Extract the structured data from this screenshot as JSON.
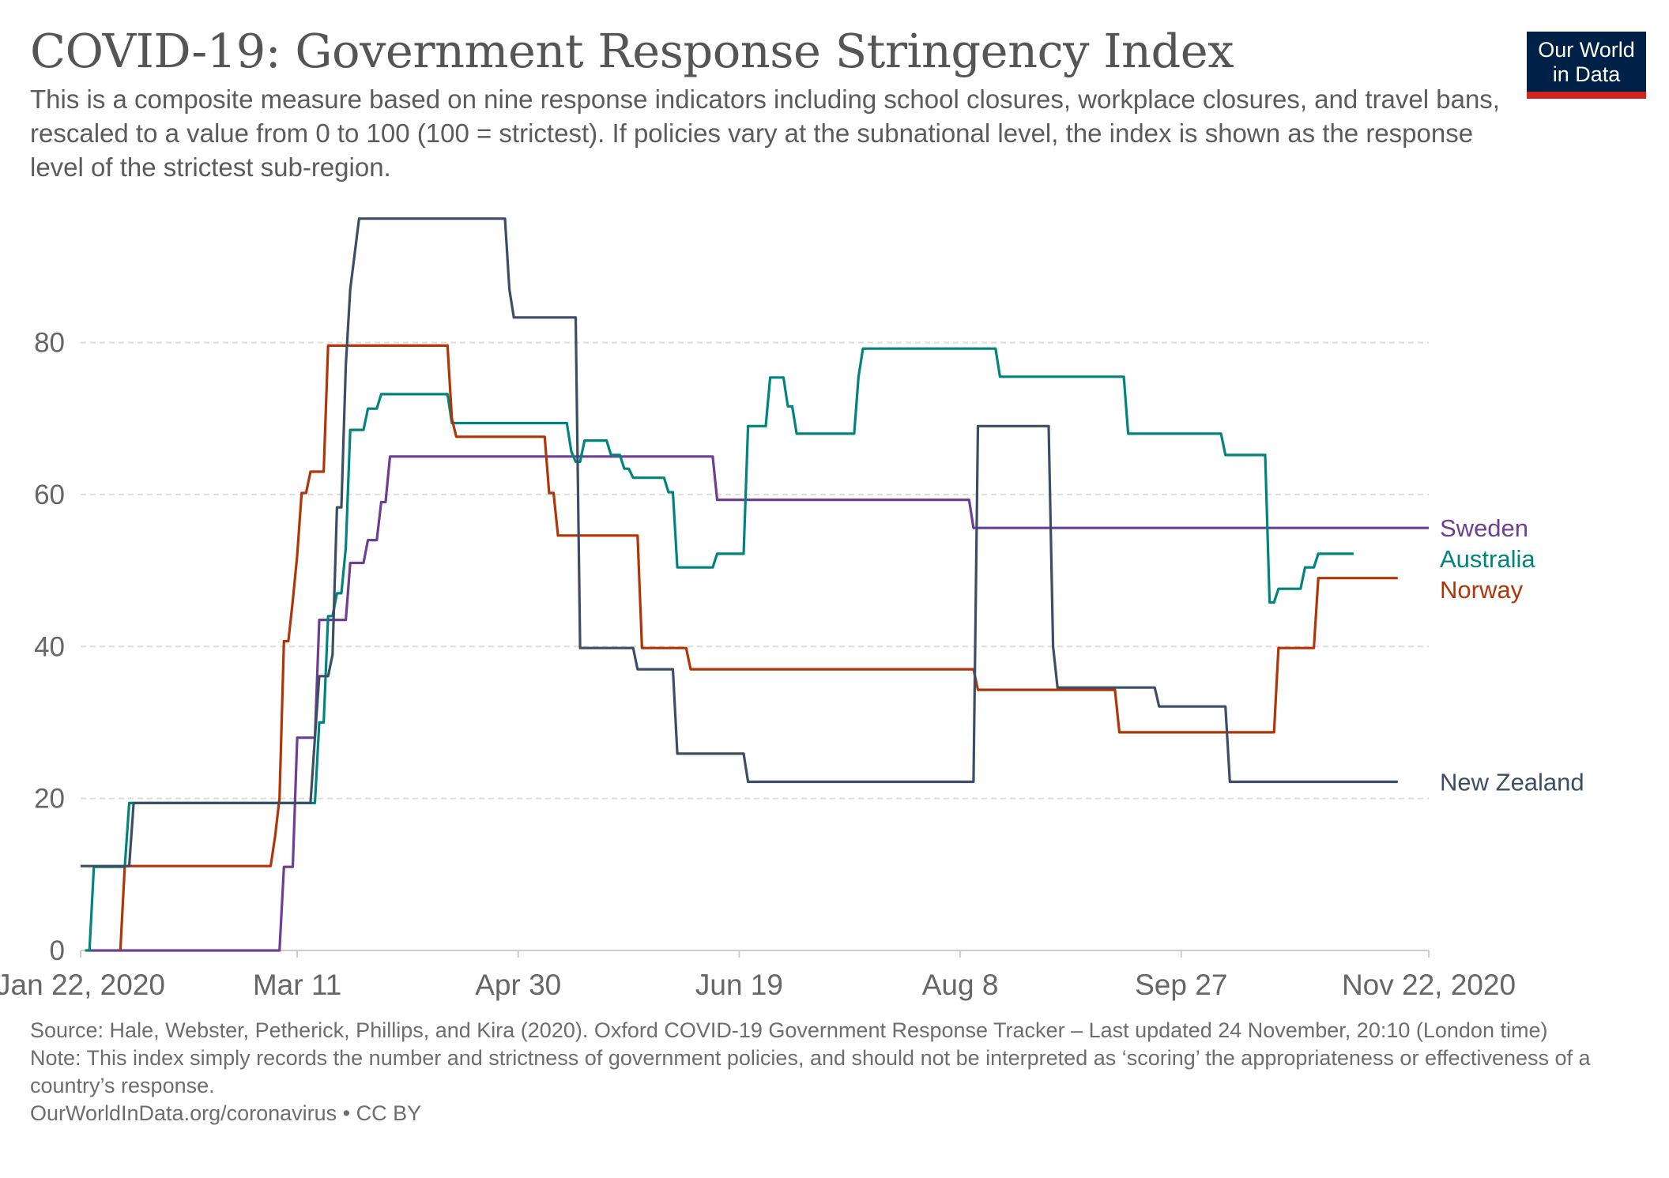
{
  "header": {
    "title": "COVID-19: Government Response Stringency Index",
    "subtitle": "This is a composite measure based on nine response indicators including school closures, workplace closures, and travel bans, rescaled to a value from 0 to 100 (100 = strictest). If policies vary at the subnational level, the index is shown as the response level of the strictest sub-region.",
    "logo_line1": "Our World",
    "logo_line2": "in Data"
  },
  "colors": {
    "logo_bg": "#002147",
    "logo_bar": "#ce261e",
    "grid": "#dddddd",
    "axis": "#cccccc"
  },
  "footer": {
    "source": "Source: Hale, Webster, Petherick, Phillips, and Kira (2020). Oxford COVID-19 Government Response Tracker – Last updated 24 November, 20:10 (London time)",
    "note": "Note: This index simply records the number and strictness of government policies, and should not be interpreted as ‘scoring’ the appropriateness or effectiveness of a country’s response.",
    "url": "OurWorldInData.org/coronavirus • CC BY"
  },
  "chart_data": {
    "type": "line",
    "line_style": "step",
    "x_type": "date",
    "x_range": [
      "2020-01-22",
      "2020-11-22"
    ],
    "ylim": [
      0,
      97
    ],
    "grid": true,
    "legend": "right (labels at line ends)",
    "x_ticks": [
      {
        "date": "2020-01-22",
        "label": "Jan 22, 2020"
      },
      {
        "date": "2020-03-11",
        "label": "Mar 11"
      },
      {
        "date": "2020-04-30",
        "label": "Apr 30"
      },
      {
        "date": "2020-06-19",
        "label": "Jun 19"
      },
      {
        "date": "2020-08-08",
        "label": "Aug 8"
      },
      {
        "date": "2020-09-27",
        "label": "Sep 27"
      },
      {
        "date": "2020-11-22",
        "label": "Nov 22, 2020"
      }
    ],
    "y_ticks": [
      0,
      20,
      40,
      60,
      80
    ],
    "series": [
      {
        "name": "Sweden",
        "color": "#6d3e91",
        "points": [
          [
            "2020-01-24",
            0
          ],
          [
            "2020-03-07",
            0
          ],
          [
            "2020-03-08",
            11
          ],
          [
            "2020-03-10",
            11
          ],
          [
            "2020-03-11",
            28
          ],
          [
            "2020-03-15",
            28
          ],
          [
            "2020-03-16",
            43.5
          ],
          [
            "2020-03-22",
            43.5
          ],
          [
            "2020-03-23",
            51
          ],
          [
            "2020-03-26",
            51
          ],
          [
            "2020-03-27",
            54
          ],
          [
            "2020-03-29",
            54
          ],
          [
            "2020-03-30",
            59
          ],
          [
            "2020-03-31",
            59
          ],
          [
            "2020-04-01",
            65
          ],
          [
            "2020-06-13",
            65
          ],
          [
            "2020-06-14",
            59.3
          ],
          [
            "2020-08-10",
            59.3
          ],
          [
            "2020-08-11",
            55.6
          ],
          [
            "2020-11-22",
            55.6
          ]
        ]
      },
      {
        "name": "Australia",
        "color": "#00847e",
        "points": [
          [
            "2020-01-23",
            0
          ],
          [
            "2020-01-24",
            0
          ],
          [
            "2020-01-25",
            11
          ],
          [
            "2020-02-01",
            11
          ],
          [
            "2020-02-02",
            19.4
          ],
          [
            "2020-03-15",
            19.4
          ],
          [
            "2020-03-16",
            30
          ],
          [
            "2020-03-17",
            30
          ],
          [
            "2020-03-18",
            44
          ],
          [
            "2020-03-19",
            44
          ],
          [
            "2020-03-20",
            47
          ],
          [
            "2020-03-21",
            47
          ],
          [
            "2020-03-22",
            53
          ],
          [
            "2020-03-23",
            68.5
          ],
          [
            "2020-03-26",
            68.5
          ],
          [
            "2020-03-27",
            71.3
          ],
          [
            "2020-03-29",
            71.3
          ],
          [
            "2020-03-30",
            73.2
          ],
          [
            "2020-04-14",
            73.2
          ],
          [
            "2020-04-15",
            69.4
          ],
          [
            "2020-05-11",
            69.4
          ],
          [
            "2020-05-12",
            65.7
          ],
          [
            "2020-05-13",
            64.3
          ],
          [
            "2020-05-14",
            64.3
          ],
          [
            "2020-05-15",
            67.1
          ],
          [
            "2020-05-20",
            67.1
          ],
          [
            "2020-05-21",
            65.2
          ],
          [
            "2020-05-23",
            65.2
          ],
          [
            "2020-05-24",
            63.4
          ],
          [
            "2020-05-25",
            63.4
          ],
          [
            "2020-05-26",
            62.2
          ],
          [
            "2020-06-02",
            62.2
          ],
          [
            "2020-06-03",
            60.3
          ],
          [
            "2020-06-04",
            60.3
          ],
          [
            "2020-06-05",
            50.4
          ],
          [
            "2020-06-13",
            50.4
          ],
          [
            "2020-06-14",
            52.2
          ],
          [
            "2020-06-20",
            52.2
          ],
          [
            "2020-06-21",
            69
          ],
          [
            "2020-06-25",
            69
          ],
          [
            "2020-06-26",
            75.4
          ],
          [
            "2020-06-29",
            75.4
          ],
          [
            "2020-06-30",
            71.6
          ],
          [
            "2020-07-01",
            71.6
          ],
          [
            "2020-07-02",
            68
          ],
          [
            "2020-07-15",
            68
          ],
          [
            "2020-07-16",
            75.5
          ],
          [
            "2020-07-17",
            79.2
          ],
          [
            "2020-08-16",
            79.2
          ],
          [
            "2020-08-17",
            75.5
          ],
          [
            "2020-09-14",
            75.5
          ],
          [
            "2020-09-15",
            68
          ],
          [
            "2020-10-06",
            68
          ],
          [
            "2020-10-07",
            65.2
          ],
          [
            "2020-10-16",
            65.2
          ],
          [
            "2020-10-17",
            45.8
          ],
          [
            "2020-10-18",
            45.8
          ],
          [
            "2020-10-19",
            47.6
          ],
          [
            "2020-10-24",
            47.6
          ],
          [
            "2020-10-25",
            50.4
          ],
          [
            "2020-10-27",
            50.4
          ],
          [
            "2020-10-28",
            52.2
          ],
          [
            "2020-11-05",
            52.2
          ]
        ]
      },
      {
        "name": "Norway",
        "color": "#b13507",
        "points": [
          [
            "2020-01-31",
            0
          ],
          [
            "2020-02-01",
            11.1
          ],
          [
            "2020-03-05",
            11.1
          ],
          [
            "2020-03-06",
            15
          ],
          [
            "2020-03-07",
            20
          ],
          [
            "2020-03-08",
            40.7
          ],
          [
            "2020-03-09",
            40.7
          ],
          [
            "2020-03-10",
            46
          ],
          [
            "2020-03-11",
            52
          ],
          [
            "2020-03-12",
            60.2
          ],
          [
            "2020-03-13",
            60.2
          ],
          [
            "2020-03-14",
            63
          ],
          [
            "2020-03-17",
            63
          ],
          [
            "2020-03-18",
            79.6
          ],
          [
            "2020-04-14",
            79.6
          ],
          [
            "2020-04-15",
            70
          ],
          [
            "2020-04-16",
            67.6
          ],
          [
            "2020-05-06",
            67.6
          ],
          [
            "2020-05-07",
            60.2
          ],
          [
            "2020-05-08",
            60.2
          ],
          [
            "2020-05-09",
            54.6
          ],
          [
            "2020-05-27",
            54.6
          ],
          [
            "2020-05-28",
            39.8
          ],
          [
            "2020-06-07",
            39.8
          ],
          [
            "2020-06-08",
            37
          ],
          [
            "2020-08-11",
            37
          ],
          [
            "2020-08-12",
            34.3
          ],
          [
            "2020-09-12",
            34.3
          ],
          [
            "2020-09-13",
            28.7
          ],
          [
            "2020-10-18",
            28.7
          ],
          [
            "2020-10-19",
            39.8
          ],
          [
            "2020-10-27",
            39.8
          ],
          [
            "2020-10-28",
            49
          ],
          [
            "2020-11-15",
            49
          ]
        ]
      },
      {
        "name": "New Zealand",
        "color": "#3c4e66",
        "points": [
          [
            "2020-01-22",
            11.1
          ],
          [
            "2020-02-02",
            11.1
          ],
          [
            "2020-02-03",
            19.4
          ],
          [
            "2020-03-14",
            19.4
          ],
          [
            "2020-03-15",
            28
          ],
          [
            "2020-03-16",
            36.1
          ],
          [
            "2020-03-18",
            36.1
          ],
          [
            "2020-03-19",
            38.9
          ],
          [
            "2020-03-20",
            58.3
          ],
          [
            "2020-03-21",
            58.3
          ],
          [
            "2020-03-22",
            77
          ],
          [
            "2020-03-23",
            87
          ],
          [
            "2020-03-25",
            96.3
          ],
          [
            "2020-04-27",
            96.3
          ],
          [
            "2020-04-28",
            87
          ],
          [
            "2020-04-29",
            83.3
          ],
          [
            "2020-05-13",
            83.3
          ],
          [
            "2020-05-14",
            39.8
          ],
          [
            "2020-05-26",
            39.8
          ],
          [
            "2020-05-27",
            37
          ],
          [
            "2020-06-04",
            37
          ],
          [
            "2020-06-05",
            25.9
          ],
          [
            "2020-06-20",
            25.9
          ],
          [
            "2020-06-21",
            22.2
          ],
          [
            "2020-08-11",
            22.2
          ],
          [
            "2020-08-12",
            69
          ],
          [
            "2020-08-28",
            69
          ],
          [
            "2020-08-29",
            40
          ],
          [
            "2020-08-30",
            34.6
          ],
          [
            "2020-09-21",
            34.6
          ],
          [
            "2020-09-22",
            32.1
          ],
          [
            "2020-10-07",
            32.1
          ],
          [
            "2020-10-08",
            22.2
          ],
          [
            "2020-11-15",
            22.2
          ]
        ]
      }
    ]
  }
}
